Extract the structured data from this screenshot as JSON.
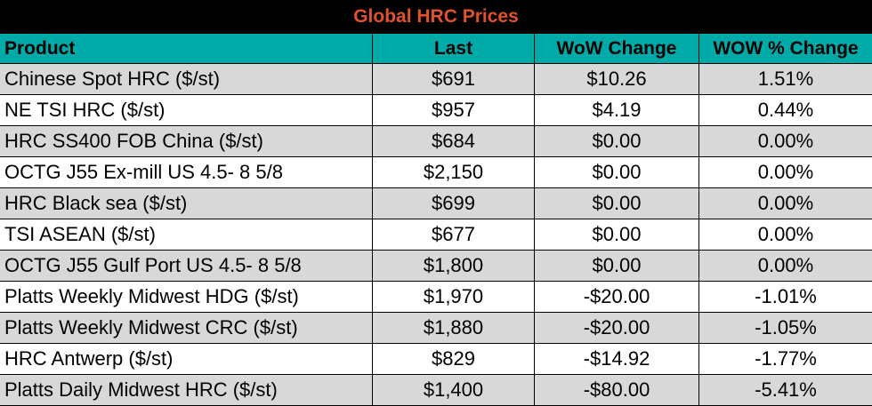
{
  "title": "Global HRC Prices",
  "colors": {
    "title_bg": "#000000",
    "title_text": "#e0522a",
    "header_bg": "#00aaa8",
    "row_alt_bg": "#d8d8d8",
    "row_bg": "#ffffff"
  },
  "columns": [
    "Product",
    "Last",
    "WoW Change",
    "WOW % Change"
  ],
  "rows": [
    {
      "product": "Chinese Spot HRC ($/st)",
      "last": "$691",
      "wow": "$10.26",
      "pct": "1.51%"
    },
    {
      "product": "NE TSI HRC ($/st)",
      "last": "$957",
      "wow": "$4.19",
      "pct": "0.44%"
    },
    {
      "product": "HRC SS400 FOB China ($/st)",
      "last": "$684",
      "wow": "$0.00",
      "pct": "0.00%"
    },
    {
      "product": "OCTG J55 Ex-mill US 4.5- 8 5/8",
      "last": "$2,150",
      "wow": "$0.00",
      "pct": "0.00%"
    },
    {
      "product": "HRC Black sea ($/st)",
      "last": "$699",
      "wow": "$0.00",
      "pct": "0.00%"
    },
    {
      "product": "TSI ASEAN ($/st)",
      "last": "$677",
      "wow": "$0.00",
      "pct": "0.00%"
    },
    {
      "product": "OCTG J55 Gulf Port US 4.5- 8 5/8",
      "last": "$1,800",
      "wow": "$0.00",
      "pct": "0.00%"
    },
    {
      "product": "Platts Weekly Midwest HDG ($/st)",
      "last": "$1,970",
      "wow": "-$20.00",
      "pct": "-1.01%"
    },
    {
      "product": "Platts Weekly Midwest CRC ($/st)",
      "last": "$1,880",
      "wow": "-$20.00",
      "pct": "-1.05%"
    },
    {
      "product": "HRC Antwerp ($/st)",
      "last": "$829",
      "wow": "-$14.92",
      "pct": "-1.77%"
    },
    {
      "product": "Platts Daily Midwest HRC ($/st)",
      "last": "$1,400",
      "wow": "-$80.00",
      "pct": "-5.41%"
    }
  ]
}
